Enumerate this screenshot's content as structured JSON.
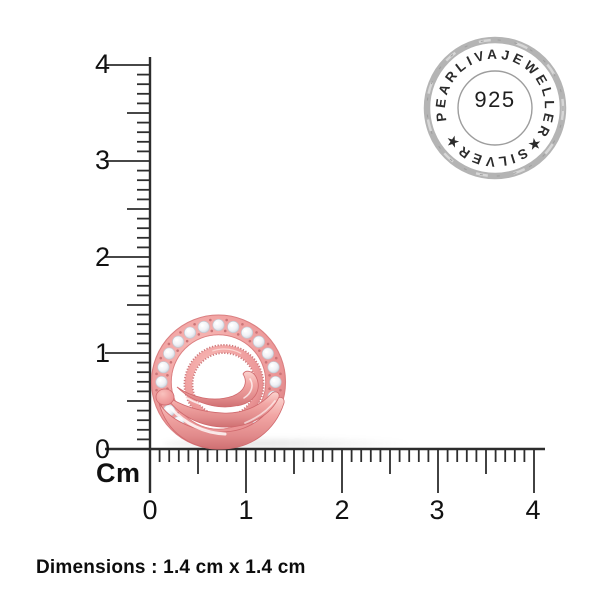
{
  "ruler": {
    "unit_label": "Cm",
    "vertical_labels": [
      "4",
      "3",
      "2",
      "1",
      "0"
    ],
    "horizontal_labels": [
      "0",
      "1",
      "2",
      "3",
      "4"
    ],
    "tick_color": "#2d2d2d",
    "label_color": "#111111"
  },
  "seal": {
    "arc_text": "PEARLIVAJEWELLER★SILVER★",
    "purity_text": "925",
    "ring_color": "#b6b6b6",
    "text_color": "#2b2b2b"
  },
  "product": {
    "name": "rose-gold-diamond-circle-swirl-stud",
    "diamond_count": 19,
    "metal_color": "#f0a1a0",
    "metal_highlight": "#fbd6d2",
    "metal_shadow": "#d47779",
    "diamond_color": "#f5f6f9",
    "diamond_edge_color": "#c3c8d1"
  },
  "footer": {
    "dimensions_text": "Dimensions : 1.4 cm x 1.4 cm"
  }
}
